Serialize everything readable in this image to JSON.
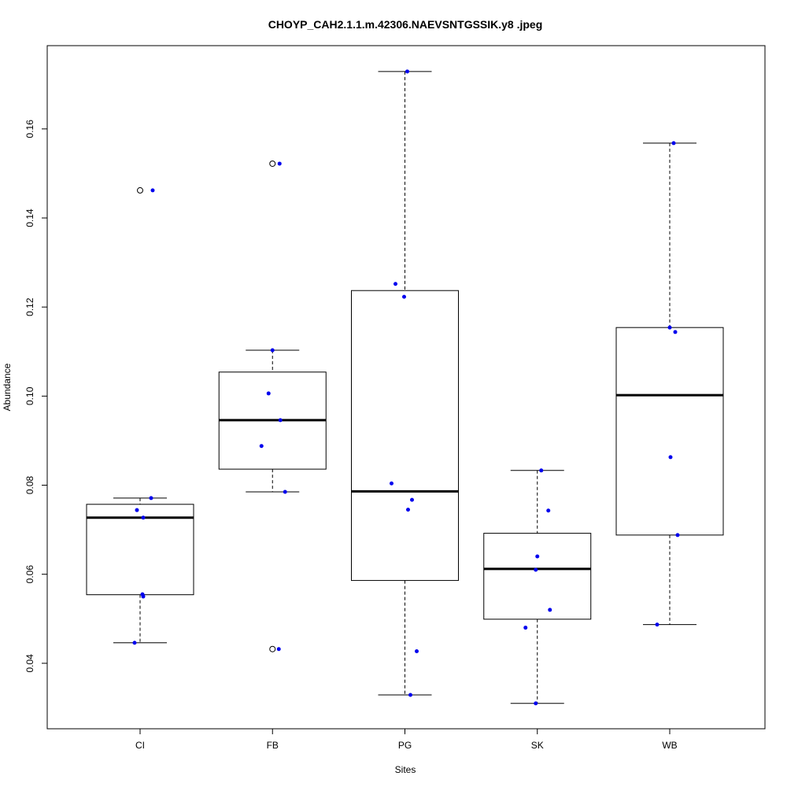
{
  "chart_data": {
    "type": "boxplot",
    "title": "CHOYP_CAH2.1.1.m.42306.NAEVSNTGSSIK.y8 .jpeg",
    "xlabel": "Sites",
    "ylabel": "Abundance",
    "ylim": [
      0.0253,
      0.1787
    ],
    "yticks": [
      0.04,
      0.06,
      0.08,
      0.1,
      0.12,
      0.14,
      0.16
    ],
    "ytick_labels": [
      "0.04",
      "0.06",
      "0.08",
      "0.10",
      "0.12",
      "0.14",
      "0.16"
    ],
    "categories": [
      "CI",
      "FB",
      "PG",
      "SK",
      "WB"
    ],
    "grid": false,
    "point_color": "#0000ee",
    "boxes": [
      {
        "category": "CI",
        "whisker_low": 0.0446,
        "q1": 0.0554,
        "median": 0.0727,
        "q3": 0.0757,
        "whisker_high": 0.0771,
        "outliers": [
          0.1462
        ],
        "points": [
          0.1462,
          0.0771,
          0.0744,
          0.0727,
          0.0555,
          0.055,
          0.0446
        ]
      },
      {
        "category": "FB",
        "whisker_low": 0.0785,
        "q1": 0.0836,
        "median": 0.0946,
        "q3": 0.1054,
        "whisker_high": 0.1103,
        "outliers": [
          0.1522,
          0.0432
        ],
        "points": [
          0.1522,
          0.1103,
          0.1006,
          0.0946,
          0.0888,
          0.0785,
          0.0432
        ]
      },
      {
        "category": "PG",
        "whisker_low": 0.0329,
        "q1": 0.0586,
        "median": 0.0786,
        "q3": 0.1237,
        "whisker_high": 0.1729,
        "outliers": [],
        "points": [
          0.1729,
          0.1252,
          0.1223,
          0.0804,
          0.0767,
          0.0745,
          0.0427,
          0.0329
        ]
      },
      {
        "category": "SK",
        "whisker_low": 0.031,
        "q1": 0.0499,
        "median": 0.0612,
        "q3": 0.0692,
        "whisker_high": 0.0833,
        "outliers": [],
        "points": [
          0.0833,
          0.0743,
          0.064,
          0.061,
          0.052,
          0.048,
          0.031
        ]
      },
      {
        "category": "WB",
        "whisker_low": 0.0487,
        "q1": 0.0688,
        "median": 0.1002,
        "q3": 0.1154,
        "whisker_high": 0.1568,
        "outliers": [],
        "points": [
          0.1568,
          0.1154,
          0.1144,
          0.0863,
          0.0688,
          0.0487
        ]
      }
    ]
  }
}
